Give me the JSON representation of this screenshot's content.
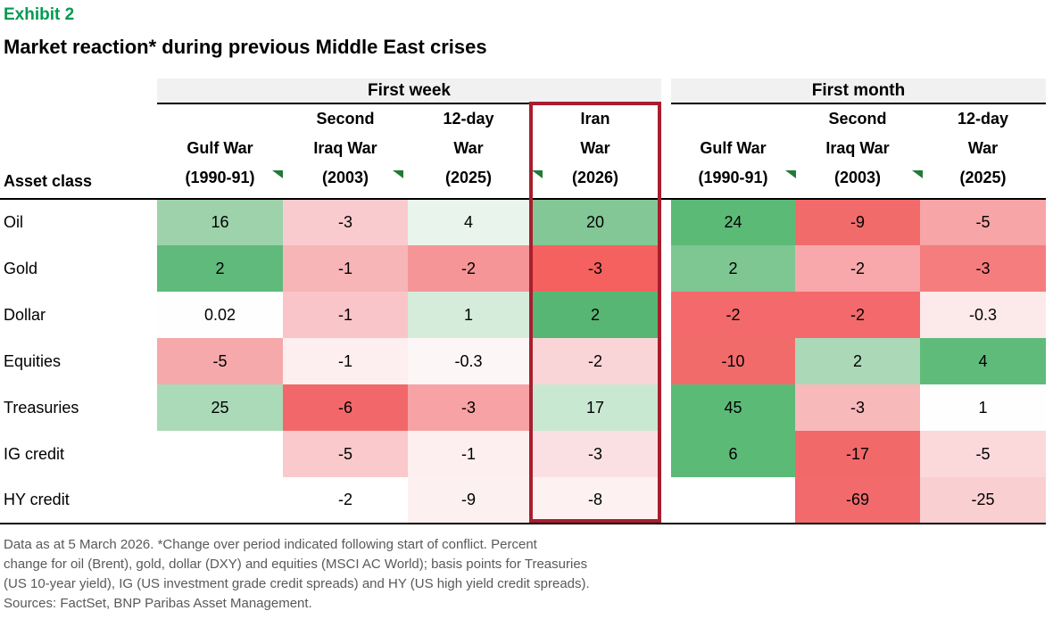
{
  "exhibit_label": "Exhibit 2",
  "title": "Market reaction* during previous Middle East crises",
  "colors": {
    "exhibit_green": "#009b52",
    "highlight_border": "#a91e2e",
    "flag_green": "#217a36",
    "header_band_bg": "#f1f1f2",
    "positive_strong": "#57b673",
    "negative_strong": "#f2686a",
    "footnote_gray": "#58595b"
  },
  "chart_data": {
    "type": "heatmap",
    "title": "Market reaction* during previous Middle East crises",
    "row_header": "Asset class",
    "color_encoding": "green = positive change, red = negative change; intensity scales with magnitude",
    "highlighted_column": "Iran War (2026)",
    "groups": [
      {
        "label": "First week",
        "columns": [
          {
            "lines": [
              "Gulf War",
              "(1990-91)"
            ]
          },
          {
            "lines": [
              "Second",
              "Iraq War",
              "(2003)"
            ]
          },
          {
            "lines": [
              "12-day",
              "War",
              "(2025)"
            ]
          },
          {
            "lines": [
              "Iran",
              "War",
              "(2026)"
            ],
            "highlighted": true
          }
        ]
      },
      {
        "label": "First month",
        "columns": [
          {
            "lines": [
              "Gulf War",
              "(1990-91)"
            ]
          },
          {
            "lines": [
              "Second",
              "Iraq War",
              "(2003)"
            ]
          },
          {
            "lines": [
              "12-day",
              "War",
              "(2025)"
            ]
          }
        ]
      }
    ],
    "rows": [
      {
        "label": "Oil",
        "first_week": [
          {
            "v": "16",
            "bg": "#9dd2aa"
          },
          {
            "v": "-3",
            "bg": "#f9cbce"
          },
          {
            "v": "4",
            "bg": "#e9f5ec"
          },
          {
            "v": "20",
            "bg": "#82c795"
          }
        ],
        "first_month": [
          {
            "v": "24",
            "bg": "#5cba77"
          },
          {
            "v": "-9",
            "bg": "#f26b6b"
          },
          {
            "v": "-5",
            "bg": "#f7a5a7"
          }
        ]
      },
      {
        "label": "Gold",
        "first_week": [
          {
            "v": "2",
            "bg": "#5fba7b"
          },
          {
            "v": "-1",
            "bg": "#f8b5b7"
          },
          {
            "v": "-2",
            "bg": "#f59598"
          },
          {
            "v": "-3",
            "bg": "#f4615f"
          }
        ],
        "first_month": [
          {
            "v": "2",
            "bg": "#7ec793"
          },
          {
            "v": "-2",
            "bg": "#f8a8ab"
          },
          {
            "v": "-3",
            "bg": "#f57d7e"
          }
        ]
      },
      {
        "label": "Dollar",
        "first_week": [
          {
            "v": "0.02",
            "bg": "#fdfefd"
          },
          {
            "v": "-1",
            "bg": "#f9c5c8"
          },
          {
            "v": "1",
            "bg": "#d5ecdb"
          },
          {
            "v": "2",
            "bg": "#57b673"
          }
        ],
        "first_month": [
          {
            "v": "-2",
            "bg": "#f4696b"
          },
          {
            "v": "-2",
            "bg": "#f4696b"
          },
          {
            "v": "-0.3",
            "bg": "#fce9ea"
          }
        ]
      },
      {
        "label": "Equities",
        "first_week": [
          {
            "v": "-5",
            "bg": "#f5a9ab"
          },
          {
            "v": "-1",
            "bg": "#fdeff0"
          },
          {
            "v": "-0.3",
            "bg": "#fdf6f6"
          },
          {
            "v": "-2",
            "bg": "#f9d5d7"
          }
        ],
        "first_month": [
          {
            "v": "-10",
            "bg": "#f26b6b"
          },
          {
            "v": "2",
            "bg": "#abd9b7"
          },
          {
            "v": "4",
            "bg": "#5fbb7a"
          }
        ]
      },
      {
        "label": "Treasuries",
        "first_week": [
          {
            "v": "25",
            "bg": "#abdab8"
          },
          {
            "v": "-6",
            "bg": "#f2686a"
          },
          {
            "v": "-3",
            "bg": "#f7a2a4"
          },
          {
            "v": "17",
            "bg": "#c9e8d2"
          }
        ],
        "first_month": [
          {
            "v": "45",
            "bg": "#5cba77"
          },
          {
            "v": "-3",
            "bg": "#f8b9bb"
          },
          {
            "v": "1",
            "bg": "#fefefe"
          }
        ]
      },
      {
        "label": "IG credit",
        "first_week": [
          {
            "v": "",
            "bg": "#ffffff"
          },
          {
            "v": "-5",
            "bg": "#f9c9cb"
          },
          {
            "v": "-1",
            "bg": "#fdeff0"
          },
          {
            "v": "-3",
            "bg": "#fbe0e3"
          }
        ],
        "first_month": [
          {
            "v": "6",
            "bg": "#5cba77"
          },
          {
            "v": "-17",
            "bg": "#f2696a"
          },
          {
            "v": "-5",
            "bg": "#fbd9db"
          }
        ]
      },
      {
        "label": "HY credit",
        "first_week": [
          {
            "v": "",
            "bg": "#ffffff"
          },
          {
            "v": "-2",
            "bg": "#ffffff"
          },
          {
            "v": "-9",
            "bg": "#fdf0f1"
          },
          {
            "v": "-8",
            "bg": "#fdf1f2"
          }
        ],
        "first_month": [
          {
            "v": "",
            "bg": "#ffffff"
          },
          {
            "v": "-69",
            "bg": "#f26a6b"
          },
          {
            "v": "-25",
            "bg": "#f9cfd2"
          }
        ]
      }
    ]
  },
  "footnote": {
    "lines": [
      "Data as at 5 March 2026. *Change over period indicated following start of conflict. Percent",
      "change for oil (Brent), gold, dollar (DXY) and equities (MSCI AC World); basis points for Treasuries",
      "(US 10-year yield), IG (US investment grade credit spreads) and HY (US high yield credit spreads).",
      "Sources: FactSet, BNP Paribas Asset Management."
    ]
  }
}
